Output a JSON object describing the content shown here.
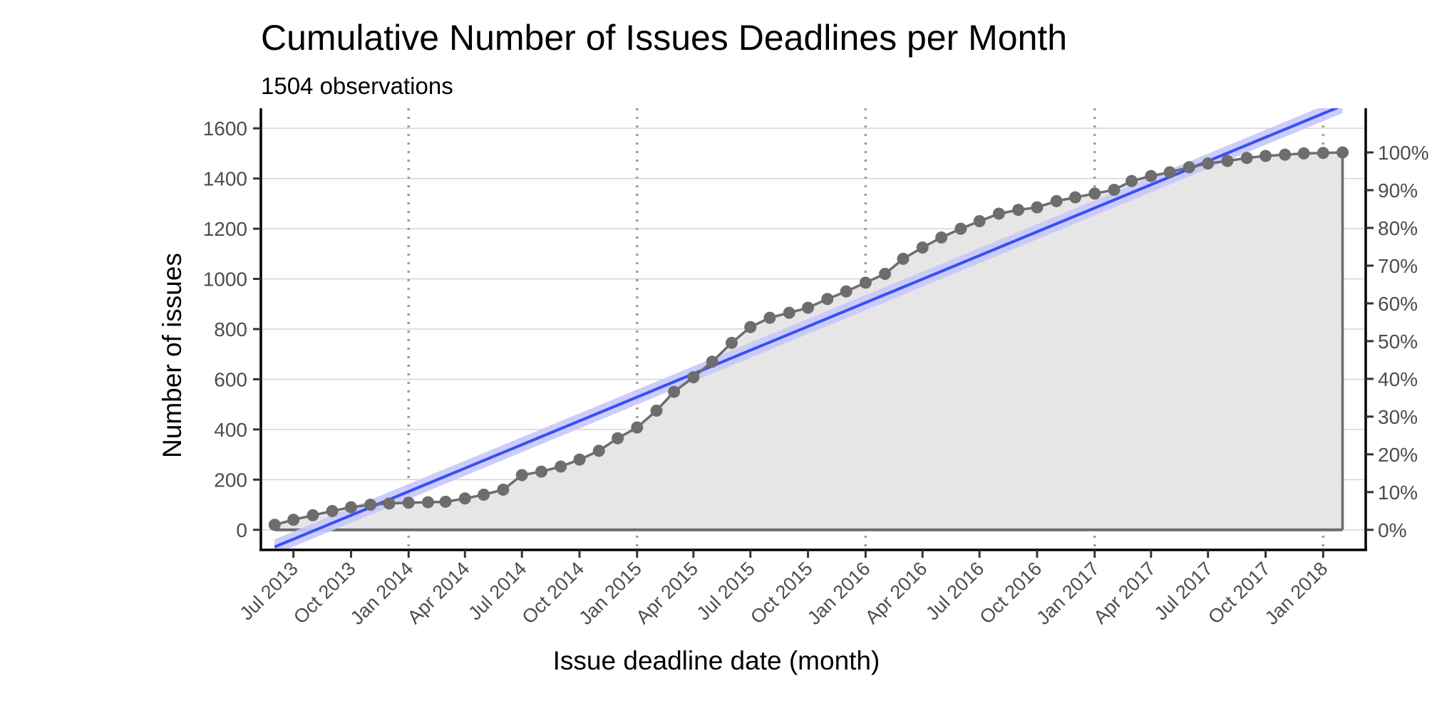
{
  "chart_data": {
    "type": "line",
    "title": "Cumulative Number of Issues Deadlines per Month",
    "subtitle": "1504 observations",
    "xlabel": "Issue deadline date (month)",
    "ylabel": "Number of issues",
    "ylim": [
      -80,
      1680
    ],
    "xlim": [
      "2013-05-10",
      "2018-03-10"
    ],
    "x_ticks": [
      {
        "date": "2013-07-01",
        "label": "Jul 2013"
      },
      {
        "date": "2013-10-01",
        "label": "Oct 2013"
      },
      {
        "date": "2014-01-01",
        "label": "Jan 2014"
      },
      {
        "date": "2014-04-01",
        "label": "Apr 2014"
      },
      {
        "date": "2014-07-01",
        "label": "Jul 2014"
      },
      {
        "date": "2014-10-01",
        "label": "Oct 2014"
      },
      {
        "date": "2015-01-01",
        "label": "Jan 2015"
      },
      {
        "date": "2015-04-01",
        "label": "Apr 2015"
      },
      {
        "date": "2015-07-01",
        "label": "Jul 2015"
      },
      {
        "date": "2015-10-01",
        "label": "Oct 2015"
      },
      {
        "date": "2016-01-01",
        "label": "Jan 2016"
      },
      {
        "date": "2016-04-01",
        "label": "Apr 2016"
      },
      {
        "date": "2016-07-01",
        "label": "Jul 2016"
      },
      {
        "date": "2016-10-01",
        "label": "Oct 2016"
      },
      {
        "date": "2017-01-01",
        "label": "Jan 2017"
      },
      {
        "date": "2017-04-01",
        "label": "Apr 2017"
      },
      {
        "date": "2017-07-01",
        "label": "Jul 2017"
      },
      {
        "date": "2017-10-01",
        "label": "Oct 2017"
      },
      {
        "date": "2018-01-01",
        "label": "Jan 2018"
      }
    ],
    "y_ticks": [
      0,
      200,
      400,
      600,
      800,
      1000,
      1200,
      1400,
      1600
    ],
    "y2_ticks": [
      {
        "value": 0,
        "label": "0%"
      },
      {
        "value": 150.4,
        "label": "10%"
      },
      {
        "value": 300.8,
        "label": "20%"
      },
      {
        "value": 451.2,
        "label": "30%"
      },
      {
        "value": 601.6,
        "label": "40%"
      },
      {
        "value": 752,
        "label": "50%"
      },
      {
        "value": 902.4,
        "label": "60%"
      },
      {
        "value": 1052.8,
        "label": "70%"
      },
      {
        "value": 1203.2,
        "label": "80%"
      },
      {
        "value": 1353.6,
        "label": "90%"
      },
      {
        "value": 1504,
        "label": "100%"
      }
    ],
    "year_lines": [
      "2014-01-01",
      "2015-01-01",
      "2016-01-01",
      "2017-01-01",
      "2018-01-01"
    ],
    "series": [
      {
        "x": [
          "2013-06-01",
          "2013-07-01",
          "2013-08-01",
          "2013-09-01",
          "2013-10-01",
          "2013-11-01",
          "2013-12-01",
          "2014-01-01",
          "2014-02-01",
          "2014-03-01",
          "2014-04-01",
          "2014-05-01",
          "2014-06-01",
          "2014-07-01",
          "2014-08-01",
          "2014-09-01",
          "2014-10-01",
          "2014-11-01",
          "2014-12-01",
          "2015-01-01",
          "2015-02-01",
          "2015-03-01",
          "2015-04-01",
          "2015-05-01",
          "2015-06-01",
          "2015-07-01",
          "2015-08-01",
          "2015-09-01",
          "2015-10-01",
          "2015-11-01",
          "2015-12-01",
          "2016-01-01",
          "2016-02-01",
          "2016-03-01",
          "2016-04-01",
          "2016-05-01",
          "2016-06-01",
          "2016-07-01",
          "2016-08-01",
          "2016-09-01",
          "2016-10-01",
          "2016-11-01",
          "2016-12-01",
          "2017-01-01",
          "2017-02-01",
          "2017-03-01",
          "2017-04-01",
          "2017-05-01",
          "2017-06-01",
          "2017-07-01",
          "2017-08-01",
          "2017-09-01",
          "2017-10-01",
          "2017-11-01",
          "2017-12-01",
          "2018-01-01",
          "2018-02-01"
        ],
        "values": [
          20,
          40,
          58,
          75,
          90,
          100,
          105,
          108,
          110,
          112,
          125,
          140,
          160,
          218,
          232,
          252,
          280,
          315,
          365,
          408,
          475,
          550,
          608,
          670,
          745,
          808,
          845,
          865,
          885,
          920,
          950,
          985,
          1020,
          1080,
          1125,
          1165,
          1200,
          1230,
          1260,
          1275,
          1285,
          1310,
          1325,
          1340,
          1355,
          1390,
          1410,
          1425,
          1445,
          1460,
          1470,
          1482,
          1490,
          1495,
          1500,
          1502,
          1504
        ],
        "color": "#6d6d6d"
      }
    ],
    "trend_line": {
      "x": [
        "2013-06-01",
        "2018-02-01"
      ],
      "values": [
        -68,
        1691
      ],
      "band": 30,
      "color": "#3a4ff2",
      "band_color": "#c6c8fb"
    },
    "area_fill": "#e6e6e6",
    "grid": "horizontal"
  }
}
